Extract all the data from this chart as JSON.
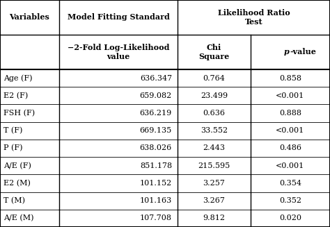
{
  "rows": [
    [
      "Age (F)",
      "636.347",
      "0.764",
      "0.858"
    ],
    [
      "E2 (F)",
      "659.082",
      "23.499",
      "<0.001"
    ],
    [
      "FSH (F)",
      "636.219",
      "0.636",
      "0.888"
    ],
    [
      "T (F)",
      "669.135",
      "33.552",
      "<0.001"
    ],
    [
      "P (F)",
      "638.026",
      "2.443",
      "0.486"
    ],
    [
      "A/E (F)",
      "851.178",
      "215.595",
      "<0.001"
    ],
    [
      "E2 (M)",
      "101.152",
      "3.257",
      "0.354"
    ],
    [
      "T (M)",
      "101.163",
      "3.267",
      "0.352"
    ],
    [
      "A/E (M)",
      "107.708",
      "9.812",
      "0.020"
    ]
  ],
  "text_color": "#000000",
  "border_color": "#000000",
  "bg_color": "#ffffff",
  "font_size": 8.0,
  "header_font_size": 8.0
}
